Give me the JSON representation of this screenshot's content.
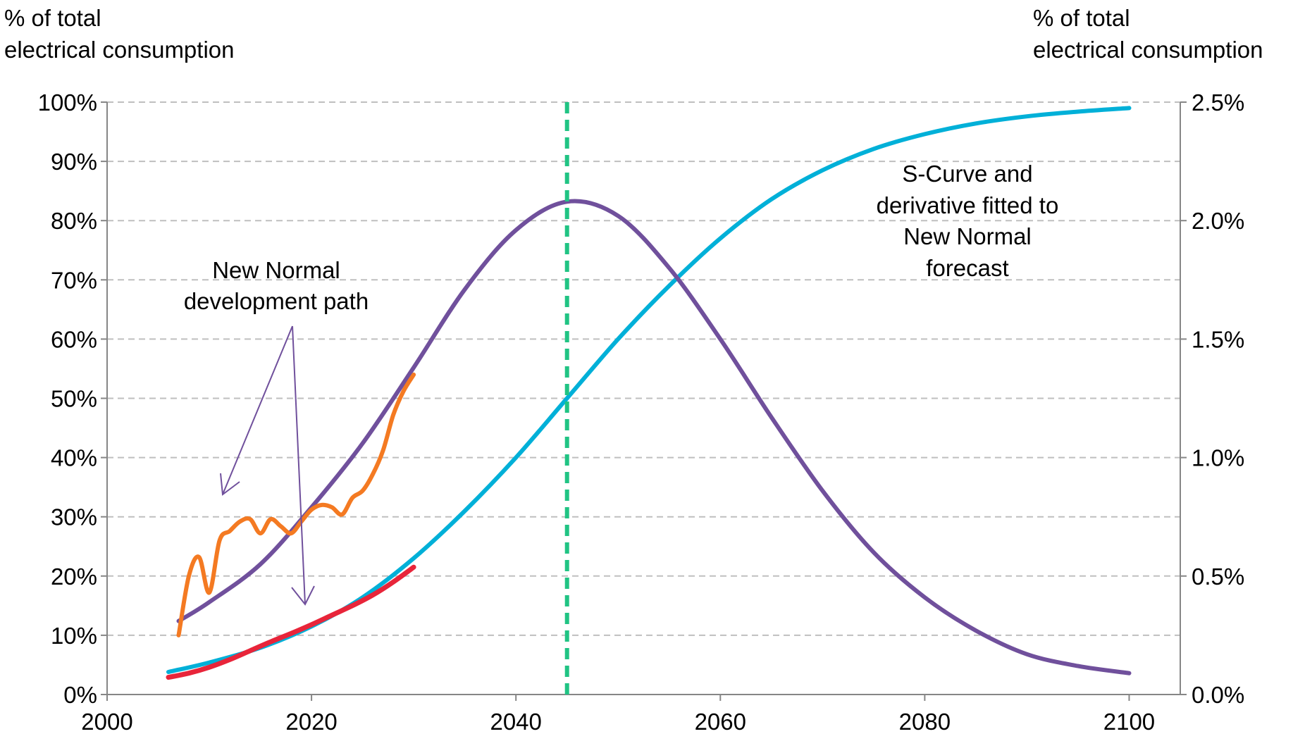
{
  "chart_data": {
    "type": "line",
    "y_left_label": [
      "% of total",
      "electrical consumption"
    ],
    "y_right_label": [
      "% of total",
      "electrical consumption"
    ],
    "x_ticks": [
      "2000",
      "2020",
      "2040",
      "2060",
      "2080",
      "2100"
    ],
    "y_left_ticks": [
      "0%",
      "10%",
      "20%",
      "30%",
      "40%",
      "50%",
      "60%",
      "70%",
      "80%",
      "90%",
      "100%"
    ],
    "y_right_ticks": [
      "0.0%",
      "0.5%",
      "1.0%",
      "1.5%",
      "2.0%",
      "2.5%"
    ],
    "xlim": [
      2000,
      2105
    ],
    "ylim_left": [
      0,
      100
    ],
    "ylim_right": [
      0,
      2.5
    ],
    "grid": true,
    "annotations": {
      "new_normal": [
        "New Normal",
        "development path"
      ],
      "s_curve": [
        "S-Curve and",
        "derivative fitted to",
        "New Normal",
        "forecast"
      ]
    },
    "vertical_marker": {
      "x": 2045,
      "color": "#21c484"
    },
    "series": [
      {
        "kind": "s_curve",
        "axis": "left",
        "color": "#00b0d8",
        "x": [
          2006,
          2010,
          2015,
          2020,
          2025,
          2030,
          2035,
          2040,
          2045,
          2050,
          2055,
          2060,
          2065,
          2070,
          2075,
          2080,
          2085,
          2090,
          2095,
          2100
        ],
        "values": [
          3.8,
          5.4,
          7.9,
          11.5,
          16.4,
          23.0,
          31.0,
          40.0,
          50.0,
          60.0,
          69.0,
          77.0,
          83.6,
          88.5,
          92.1,
          94.6,
          96.4,
          97.6,
          98.4,
          99.0
        ]
      },
      {
        "kind": "derivative",
        "axis": "right",
        "color": "#70509c",
        "x": [
          2007,
          2010,
          2015,
          2020,
          2025,
          2030,
          2035,
          2040,
          2045,
          2050,
          2055,
          2060,
          2065,
          2070,
          2075,
          2080,
          2085,
          2090,
          2095,
          2100
        ],
        "values": [
          0.31,
          0.39,
          0.55,
          0.79,
          1.06,
          1.38,
          1.71,
          1.96,
          2.08,
          2.02,
          1.8,
          1.5,
          1.17,
          0.86,
          0.6,
          0.41,
          0.27,
          0.17,
          0.12,
          0.09
        ]
      },
      {
        "kind": "development_cumulative",
        "axis": "left",
        "color": "#e8253a",
        "x": [
          2006,
          2008,
          2010,
          2012,
          2014,
          2016,
          2018,
          2020,
          2022,
          2024,
          2026,
          2028,
          2030
        ],
        "values": [
          2.9,
          3.6,
          4.6,
          5.9,
          7.4,
          8.9,
          10.3,
          11.8,
          13.4,
          15.0,
          16.8,
          19.0,
          21.5
        ]
      },
      {
        "kind": "development_derivative",
        "axis": "right",
        "color": "#f47a22",
        "x": [
          2007,
          2008,
          2009,
          2010,
          2011,
          2012,
          2013,
          2014,
          2015,
          2016,
          2017,
          2018,
          2019,
          2020,
          2021,
          2022,
          2023,
          2024,
          2025,
          2026,
          2027,
          2028,
          2029,
          2030
        ],
        "values": [
          0.25,
          0.5,
          0.58,
          0.43,
          0.65,
          0.69,
          0.73,
          0.74,
          0.68,
          0.74,
          0.71,
          0.68,
          0.73,
          0.78,
          0.8,
          0.79,
          0.76,
          0.83,
          0.86,
          0.93,
          1.03,
          1.18,
          1.28,
          1.35
        ]
      }
    ]
  }
}
